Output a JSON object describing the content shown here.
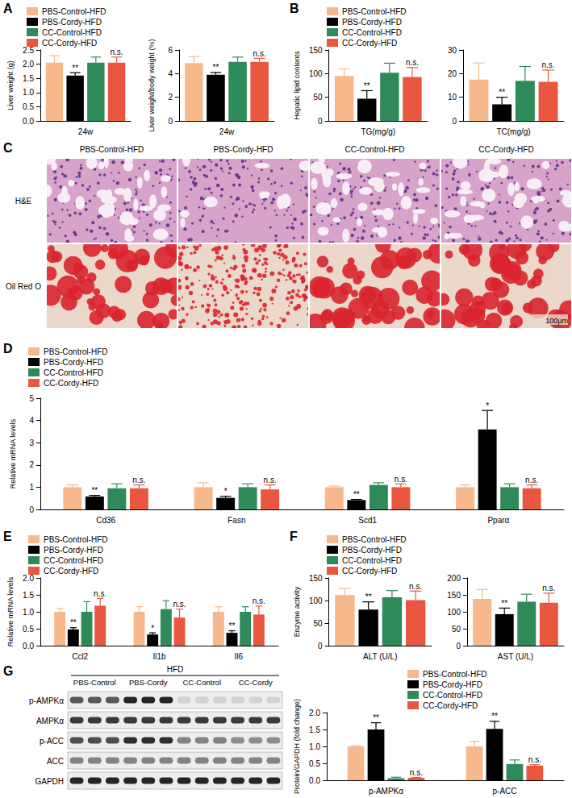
{
  "chart_data": [
    {
      "panel": "A",
      "type": "bar",
      "categories": [
        "24w"
      ],
      "ylabel": "Liver weight (g)",
      "ylim": [
        0,
        2.5
      ],
      "yticks": [
        {
          "value": 0,
          "label": "0.0"
        },
        0.5,
        {
          "value": 1,
          "label": "1.0"
        },
        1.5,
        {
          "value": 2,
          "label": "2.0"
        },
        2.5
      ],
      "grid": false,
      "legend": "top-left",
      "series": [
        {
          "name": "PBS-Control-HFD",
          "color": "#F7B98B",
          "values": [
            2.05
          ],
          "errors": [
            0.25
          ],
          "annotations": [
            null
          ]
        },
        {
          "name": "PBS-Cordy-HFD",
          "color": "#000000",
          "values": [
            1.6
          ],
          "errors": [
            0.1
          ],
          "annotations": [
            "**"
          ]
        },
        {
          "name": "CC-Control-HFD",
          "color": "#2F8A5A",
          "values": [
            2.05
          ],
          "errors": [
            0.2
          ],
          "annotations": [
            null
          ]
        },
        {
          "name": "CC-Cordy-HFD",
          "color": "#E9573F",
          "values": [
            2.05
          ],
          "errors": [
            0.2
          ],
          "annotations": [
            "n.s."
          ]
        }
      ]
    },
    {
      "type": "bar",
      "categories": [
        "24w"
      ],
      "ylabel": "Liver weight/body weight (%)",
      "ylim": [
        0,
        6
      ],
      "yticks": [
        0,
        2,
        4,
        6
      ],
      "grid": false,
      "series": [
        {
          "name": "PBS-Control-HFD",
          "color": "#F7B98B",
          "values": [
            4.9
          ],
          "errors": [
            0.55
          ],
          "annotations": [
            null
          ]
        },
        {
          "name": "PBS-Cordy-HFD",
          "color": "#000000",
          "values": [
            3.9
          ],
          "errors": [
            0.2
          ],
          "annotations": [
            "**"
          ]
        },
        {
          "name": "CC-Control-HFD",
          "color": "#2F8A5A",
          "values": [
            5.0
          ],
          "errors": [
            0.4
          ],
          "annotations": [
            null
          ]
        },
        {
          "name": "CC-Cordy-HFD",
          "color": "#E9573F",
          "values": [
            5.0
          ],
          "errors": [
            0.3
          ],
          "annotations": [
            "n.s."
          ]
        }
      ]
    },
    {
      "panel": "B",
      "type": "bar",
      "categories": [
        "TG(mg/g)"
      ],
      "ylabel": "Hepatic lipid contents",
      "ylim": [
        0,
        150
      ],
      "yticks": [
        0,
        50,
        100,
        150
      ],
      "grid": false,
      "legend": "top-left",
      "series": [
        {
          "name": "PBS-Control-HFD",
          "color": "#F7B98B",
          "values": [
            95
          ],
          "errors": [
            15
          ],
          "annotations": [
            null
          ]
        },
        {
          "name": "PBS-Cordy-HFD",
          "color": "#000000",
          "values": [
            47
          ],
          "errors": [
            17
          ],
          "annotations": [
            "**"
          ]
        },
        {
          "name": "CC-Control-HFD",
          "color": "#2F8A5A",
          "values": [
            102
          ],
          "errors": [
            20
          ],
          "annotations": [
            null
          ]
        },
        {
          "name": "CC-Cordy-HFD",
          "color": "#E9573F",
          "values": [
            93
          ],
          "errors": [
            20
          ],
          "annotations": [
            "n.s."
          ]
        }
      ]
    },
    {
      "type": "bar",
      "categories": [
        "TC(mg/g)"
      ],
      "ylim": [
        0,
        30
      ],
      "yticks": [
        0,
        10,
        20,
        30
      ],
      "grid": false,
      "series": [
        {
          "name": "PBS-Control-HFD",
          "color": "#F7B98B",
          "values": [
            17.5
          ],
          "errors": [
            7
          ],
          "annotations": [
            null
          ]
        },
        {
          "name": "PBS-Cordy-HFD",
          "color": "#000000",
          "values": [
            7
          ],
          "errors": [
            3
          ],
          "annotations": [
            "**"
          ]
        },
        {
          "name": "CC-Control-HFD",
          "color": "#2F8A5A",
          "values": [
            17
          ],
          "errors": [
            6
          ],
          "annotations": [
            null
          ]
        },
        {
          "name": "CC-Cordy-HFD",
          "color": "#E9573F",
          "values": [
            16.5
          ],
          "errors": [
            5
          ],
          "annotations": [
            "n.s."
          ]
        }
      ]
    },
    {
      "panel": "D",
      "type": "bar",
      "categories": [
        "Cd36",
        "Fasn",
        "Scd1",
        "Pparα"
      ],
      "ylabel": "Relative mRNA levels",
      "ylim": [
        0,
        5
      ],
      "yticks": [
        0,
        1,
        2,
        3,
        4,
        5
      ],
      "grid": false,
      "legend": "top-left",
      "series": [
        {
          "name": "PBS-Control-HFD",
          "color": "#F7B98B",
          "values": [
            1.0,
            1.0,
            1.0,
            1.0
          ],
          "errors": [
            0.1,
            0.2,
            0.05,
            0.1
          ],
          "annotations": [
            null,
            null,
            null,
            null
          ]
        },
        {
          "name": "PBS-Cordy-HFD",
          "color": "#000000",
          "values": [
            0.58,
            0.52,
            0.42,
            3.6
          ],
          "errors": [
            0.05,
            0.07,
            0.03,
            0.85
          ],
          "annotations": [
            "**",
            "*",
            "**",
            "*"
          ]
        },
        {
          "name": "CC-Control-HFD",
          "color": "#2F8A5A",
          "values": [
            0.95,
            1.0,
            1.1,
            1.0
          ],
          "errors": [
            0.2,
            0.15,
            0.1,
            0.15
          ],
          "annotations": [
            null,
            null,
            null,
            null
          ]
        },
        {
          "name": "CC-Cordy-HFD",
          "color": "#E9573F",
          "values": [
            0.95,
            0.9,
            1.0,
            0.95
          ],
          "errors": [
            0.15,
            0.2,
            0.15,
            0.15
          ],
          "annotations": [
            "n.s.",
            "n.s.",
            "n.s.",
            "n.s."
          ]
        }
      ]
    },
    {
      "panel": "E",
      "type": "bar",
      "categories": [
        "Ccl2",
        "Il1b",
        "Il6"
      ],
      "ylabel": "Relative mRNA levels",
      "ylim": [
        0,
        2
      ],
      "yticks": [
        {
          "value": 0,
          "label": "0.0"
        },
        0.5,
        {
          "value": 1,
          "label": "1.0"
        },
        1.5,
        {
          "value": 2,
          "label": "2.0"
        }
      ],
      "grid": false,
      "legend": "top-left",
      "series": [
        {
          "name": "PBS-Control-HFD",
          "color": "#F7B98B",
          "values": [
            1.0,
            1.0,
            1.0
          ],
          "errors": [
            0.1,
            0.15,
            0.15
          ],
          "annotations": [
            null,
            null,
            null
          ]
        },
        {
          "name": "PBS-Cordy-HFD",
          "color": "#000000",
          "values": [
            0.48,
            0.33,
            0.38
          ],
          "errors": [
            0.05,
            0.05,
            0.06
          ],
          "annotations": [
            "**",
            "*",
            "**"
          ]
        },
        {
          "name": "CC-Control-HFD",
          "color": "#2F8A5A",
          "values": [
            1.0,
            1.08,
            1.0
          ],
          "errors": [
            0.3,
            0.25,
            0.15
          ],
          "annotations": [
            null,
            null,
            null
          ]
        },
        {
          "name": "CC-Cordy-HFD",
          "color": "#E9573F",
          "values": [
            1.18,
            0.83,
            0.92
          ],
          "errors": [
            0.22,
            0.25,
            0.25
          ],
          "annotations": [
            "n.s.",
            "n.s.",
            "n.s."
          ]
        }
      ]
    },
    {
      "panel": "F",
      "type": "bar",
      "categories": [
        "ALT (U/L)"
      ],
      "ylabel": "Enzyme activity",
      "ylim": [
        0,
        150
      ],
      "yticks": [
        0,
        50,
        100,
        150
      ],
      "grid": false,
      "legend": "top-left",
      "series": [
        {
          "name": "PBS-Control-HFD",
          "color": "#F7B98B",
          "values": [
            112
          ],
          "errors": [
            15
          ],
          "annotations": [
            null
          ]
        },
        {
          "name": "PBS-Cordy-HFD",
          "color": "#000000",
          "values": [
            80
          ],
          "errors": [
            17
          ],
          "annotations": [
            "**"
          ]
        },
        {
          "name": "CC-Control-HFD",
          "color": "#2F8A5A",
          "values": [
            107
          ],
          "errors": [
            15
          ],
          "annotations": [
            null
          ]
        },
        {
          "name": "CC-Cordy-HFD",
          "color": "#E9573F",
          "values": [
            101
          ],
          "errors": [
            20
          ],
          "annotations": [
            "n.s."
          ]
        }
      ]
    },
    {
      "type": "bar",
      "categories": [
        "AST (U/L)"
      ],
      "ylim": [
        0,
        200
      ],
      "yticks": [
        0,
        50,
        100,
        150,
        200
      ],
      "grid": false,
      "series": [
        {
          "name": "PBS-Control-HFD",
          "color": "#F7B98B",
          "values": [
            138
          ],
          "errors": [
            28
          ],
          "annotations": [
            null
          ]
        },
        {
          "name": "PBS-Cordy-HFD",
          "color": "#000000",
          "values": [
            93
          ],
          "errors": [
            18
          ],
          "annotations": [
            "**"
          ]
        },
        {
          "name": "CC-Control-HFD",
          "color": "#2F8A5A",
          "values": [
            130
          ],
          "errors": [
            22
          ],
          "annotations": [
            null
          ]
        },
        {
          "name": "CC-Cordy-HFD",
          "color": "#E9573F",
          "values": [
            127
          ],
          "errors": [
            28
          ],
          "annotations": [
            "n.s."
          ]
        }
      ]
    },
    {
      "type": "bar",
      "categories": [
        "p-AMPKα",
        "p-ACC"
      ],
      "ylabel": "Protein/GAPDH (fold change)",
      "ylim": [
        0,
        2
      ],
      "yticks": [
        {
          "value": 0,
          "label": "0.0"
        },
        0.5,
        {
          "value": 1,
          "label": "1.0"
        },
        1.5,
        {
          "value": 2,
          "label": "2.0"
        }
      ],
      "grid": false,
      "legend": "top-left",
      "series": [
        {
          "name": "PBS-Control-HFD",
          "color": "#F7B98B",
          "values": [
            1.0,
            1.0
          ],
          "errors": [
            0.02,
            0.15
          ],
          "annotations": [
            null,
            null
          ]
        },
        {
          "name": "PBS-Cordy-HFD",
          "color": "#000000",
          "values": [
            1.5,
            1.52
          ],
          "errors": [
            0.2,
            0.22
          ],
          "annotations": [
            "**",
            "**"
          ]
        },
        {
          "name": "CC-Control-HFD",
          "color": "#2F8A5A",
          "values": [
            0.06,
            0.48
          ],
          "errors": [
            0.03,
            0.12
          ],
          "annotations": [
            null,
            null
          ]
        },
        {
          "name": "CC-Cordy-HFD",
          "color": "#E9573F",
          "values": [
            0.07,
            0.43
          ],
          "errors": [
            0.01,
            0.03
          ],
          "annotations": [
            "n.s.",
            "n.s."
          ]
        }
      ]
    }
  ],
  "micrographs": {
    "panel": "C",
    "columns": [
      "PBS-Control-HFD",
      "PBS-Cordy-HFD",
      "CC-Control-HFD",
      "CC-Cordy-HFD"
    ],
    "rows": [
      "H&E",
      "Oil Red O"
    ],
    "scale_bar": "100μm"
  },
  "western_blot": {
    "panel": "G",
    "header": "HFD",
    "groups": [
      "PBS-Control",
      "PBS-Cordy",
      "CC-Control",
      "CC-Cordy"
    ],
    "rows": [
      "p-AMPKα",
      "AMPKα",
      "p-ACC",
      "ACC",
      "GAPDH"
    ]
  }
}
